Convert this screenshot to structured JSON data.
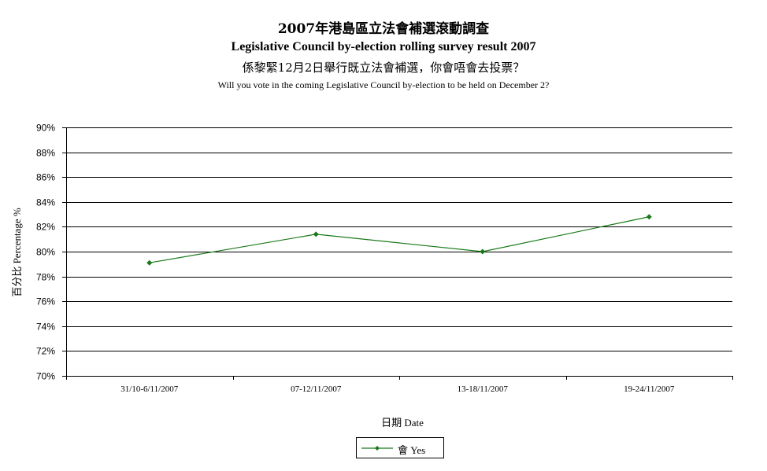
{
  "chart_data": {
    "type": "line",
    "title": "2007年港島區立法會補選滾動調查",
    "subtitle": "Legislative Council by-election rolling survey result 2007",
    "question_zh": "係黎緊12月2日舉行既立法會補選，你會唔會去投票？",
    "question_en": "Will you vote in the coming Legislative Council by-election to be held on December 2?",
    "xlabel": "日期 Date",
    "ylabel": "百分比 Percentage %",
    "categories": [
      "31/10-6/11/2007",
      "07-12/11/2007",
      "13-18/11/2007",
      "19-24/11/2007"
    ],
    "series": [
      {
        "name": "會 Yes",
        "color": "#1a7a1a",
        "values": [
          79.1,
          81.4,
          80.0,
          82.8
        ]
      }
    ],
    "ylim": [
      70,
      90
    ],
    "yticks": [
      "70%",
      "72%",
      "74%",
      "76%",
      "78%",
      "80%",
      "82%",
      "84%",
      "86%",
      "88%",
      "90%"
    ],
    "grid": true,
    "legend_position": "bottom"
  }
}
